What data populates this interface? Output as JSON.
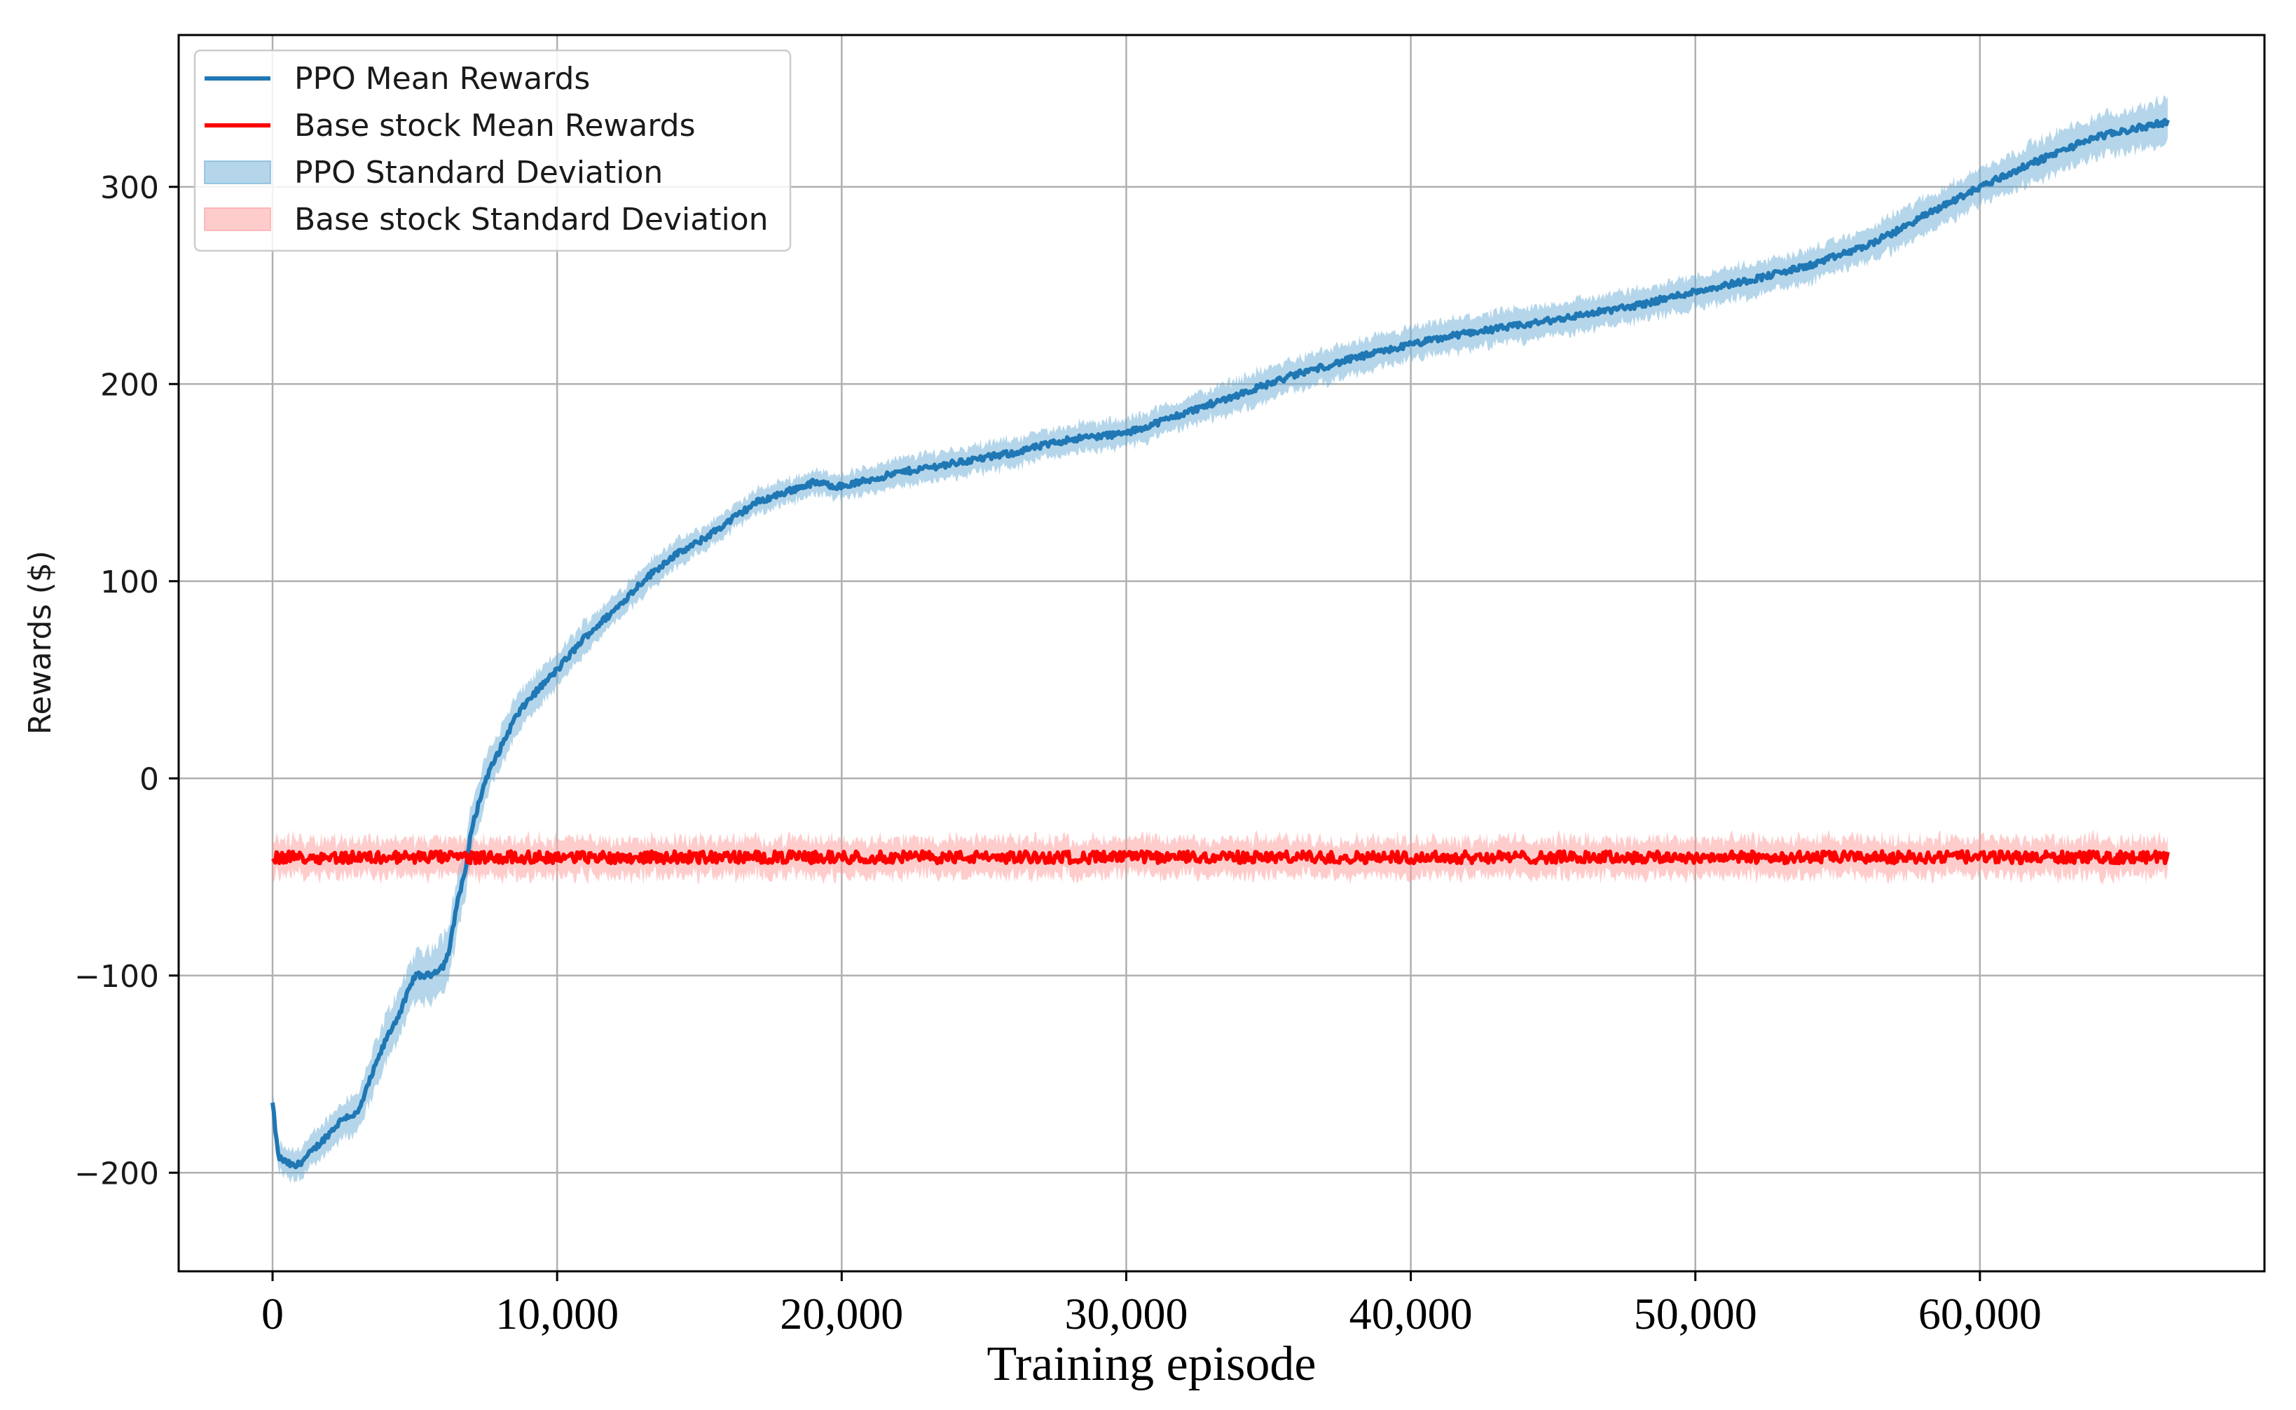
{
  "chart_data": {
    "type": "line",
    "title": "",
    "xlabel": "Training episode",
    "ylabel": "Rewards ($)",
    "xlim": [
      -3300,
      70000
    ],
    "ylim": [
      -250,
      377
    ],
    "xticks": [
      0,
      10000,
      20000,
      30000,
      40000,
      50000,
      60000
    ],
    "xtick_labels": [
      "0",
      "10,000",
      "20,000",
      "30,000",
      "40,000",
      "50,000",
      "60,000"
    ],
    "yticks": [
      -200,
      -100,
      0,
      100,
      200,
      300
    ],
    "ytick_labels": [
      "−200",
      "−100",
      "0",
      "100",
      "200",
      "300"
    ],
    "grid": true,
    "legend": {
      "placement": "top-left",
      "entries": [
        {
          "label": "PPO Mean Rewards",
          "kind": "line",
          "series": "ppo"
        },
        {
          "label": "Base stock Mean Rewards",
          "kind": "line",
          "series": "base"
        },
        {
          "label": "PPO Standard Deviation",
          "kind": "band",
          "series": "ppo"
        },
        {
          "label": "Base stock Standard Deviation",
          "kind": "band",
          "series": "base"
        }
      ]
    },
    "series": [
      {
        "id": "ppo",
        "name": "PPO Mean Rewards",
        "std_name": "PPO Standard Deviation",
        "color": "#1f77b4",
        "band_color": "#6baed6",
        "x": [
          0,
          200,
          500,
          800,
          1200,
          1800,
          2500,
          3000,
          3500,
          4000,
          4500,
          5000,
          5500,
          6000,
          6200,
          6500,
          6800,
          7000,
          7500,
          8000,
          8500,
          9000,
          10000,
          11000,
          12000,
          13000,
          14000,
          15000,
          16000,
          17000,
          18000,
          19000,
          20000,
          22000,
          24000,
          26000,
          28000,
          30000,
          32000,
          34000,
          36000,
          38000,
          40000,
          42000,
          44000,
          46000,
          48000,
          50000,
          52000,
          54000,
          56000,
          57000,
          58000,
          60000,
          62000,
          64000,
          66600
        ],
        "mean": [
          -165,
          -192,
          -195,
          -197,
          -192,
          -183,
          -172,
          -170,
          -150,
          -132,
          -118,
          -100,
          -100,
          -95,
          -88,
          -62,
          -45,
          -25,
          0,
          15,
          30,
          40,
          55,
          72,
          85,
          100,
          112,
          120,
          130,
          140,
          145,
          150,
          148,
          155,
          160,
          165,
          172,
          175,
          185,
          195,
          205,
          213,
          220,
          226,
          230,
          235,
          240,
          247,
          253,
          260,
          270,
          277,
          285,
          300,
          313,
          325,
          333
        ],
        "std": [
          6,
          7,
          7,
          8,
          8,
          8,
          9,
          10,
          11,
          12,
          12,
          12,
          13,
          15,
          15,
          14,
          13,
          12,
          11,
          10,
          10,
          9,
          8,
          8,
          7,
          7,
          7,
          6,
          6,
          6,
          6,
          6,
          6,
          7,
          7,
          7,
          7,
          7,
          7,
          8,
          8,
          8,
          8,
          8,
          8,
          8,
          8,
          8,
          8,
          8,
          8,
          9,
          9,
          9,
          10,
          10,
          11
        ]
      },
      {
        "id": "base",
        "name": "Base stock Mean Rewards",
        "std_name": "Base stock Standard Deviation",
        "color": "#ff0000",
        "band_color": "#ff9999",
        "x": [
          0,
          66600
        ],
        "mean": [
          -40,
          -40
        ],
        "std": [
          9,
          9
        ]
      }
    ]
  }
}
